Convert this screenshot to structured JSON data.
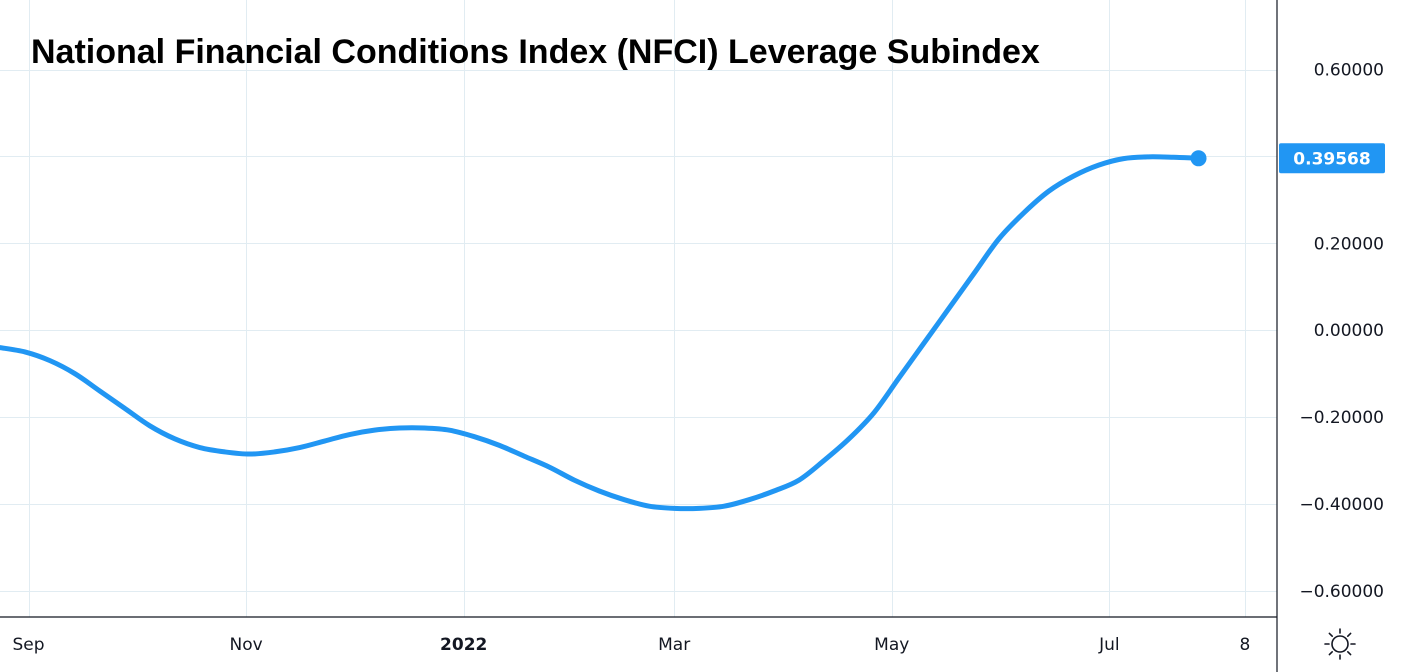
{
  "chart_data": {
    "type": "line",
    "title": "National Financial Conditions Index (NFCI) Leverage Subindex",
    "xlabel": "",
    "ylabel": "",
    "x_tick_labels": [
      "Sep",
      "Nov",
      "2022",
      "Mar",
      "May",
      "Jul",
      "8"
    ],
    "y_tick_labels": [
      "0.60000",
      "0.20000",
      "0.00000",
      "−0.20000",
      "−0.40000",
      "−0.60000"
    ],
    "y_ticks": [
      0.6,
      0.2,
      0.0,
      -0.2,
      -0.4,
      -0.6
    ],
    "ylim": [
      -0.66,
      0.76
    ],
    "xlim": [
      "2021-08-24",
      "2022-08-17"
    ],
    "grid": true,
    "last_value_label": "0.39568",
    "series": [
      {
        "color": "#2196f3",
        "x": [
          "2021-08-24",
          "2021-08-31",
          "2021-09-07",
          "2021-09-14",
          "2021-09-21",
          "2021-09-28",
          "2021-10-05",
          "2021-10-12",
          "2021-10-19",
          "2021-10-26",
          "2021-11-02",
          "2021-11-09",
          "2021-11-16",
          "2021-11-23",
          "2021-11-30",
          "2021-12-07",
          "2021-12-14",
          "2021-12-21",
          "2021-12-28",
          "2022-01-04",
          "2022-01-11",
          "2022-01-18",
          "2022-01-25",
          "2022-02-01",
          "2022-02-08",
          "2022-02-15",
          "2022-02-22",
          "2022-03-01",
          "2022-03-08",
          "2022-03-15",
          "2022-03-22",
          "2022-03-29",
          "2022-04-05",
          "2022-04-12",
          "2022-04-19",
          "2022-04-26",
          "2022-05-03",
          "2022-05-10",
          "2022-05-17",
          "2022-05-24",
          "2022-05-31",
          "2022-06-07",
          "2022-06-14",
          "2022-06-21",
          "2022-06-28",
          "2022-07-05",
          "2022-07-12",
          "2022-07-19",
          "2022-07-26"
        ],
        "values": [
          -0.04,
          -0.05,
          -0.07,
          -0.1,
          -0.14,
          -0.18,
          -0.22,
          -0.25,
          -0.27,
          -0.28,
          -0.285,
          -0.28,
          -0.27,
          -0.255,
          -0.24,
          -0.23,
          -0.225,
          -0.225,
          -0.23,
          -0.245,
          -0.265,
          -0.29,
          -0.315,
          -0.345,
          -0.37,
          -0.39,
          -0.405,
          -0.41,
          -0.41,
          -0.405,
          -0.39,
          -0.37,
          -0.345,
          -0.3,
          -0.25,
          -0.19,
          -0.11,
          -0.03,
          0.05,
          0.13,
          0.21,
          0.27,
          0.32,
          0.355,
          0.38,
          0.395,
          0.399,
          0.398,
          0.39568
        ]
      }
    ]
  },
  "icons": {
    "settings": "sun-settings-icon"
  }
}
